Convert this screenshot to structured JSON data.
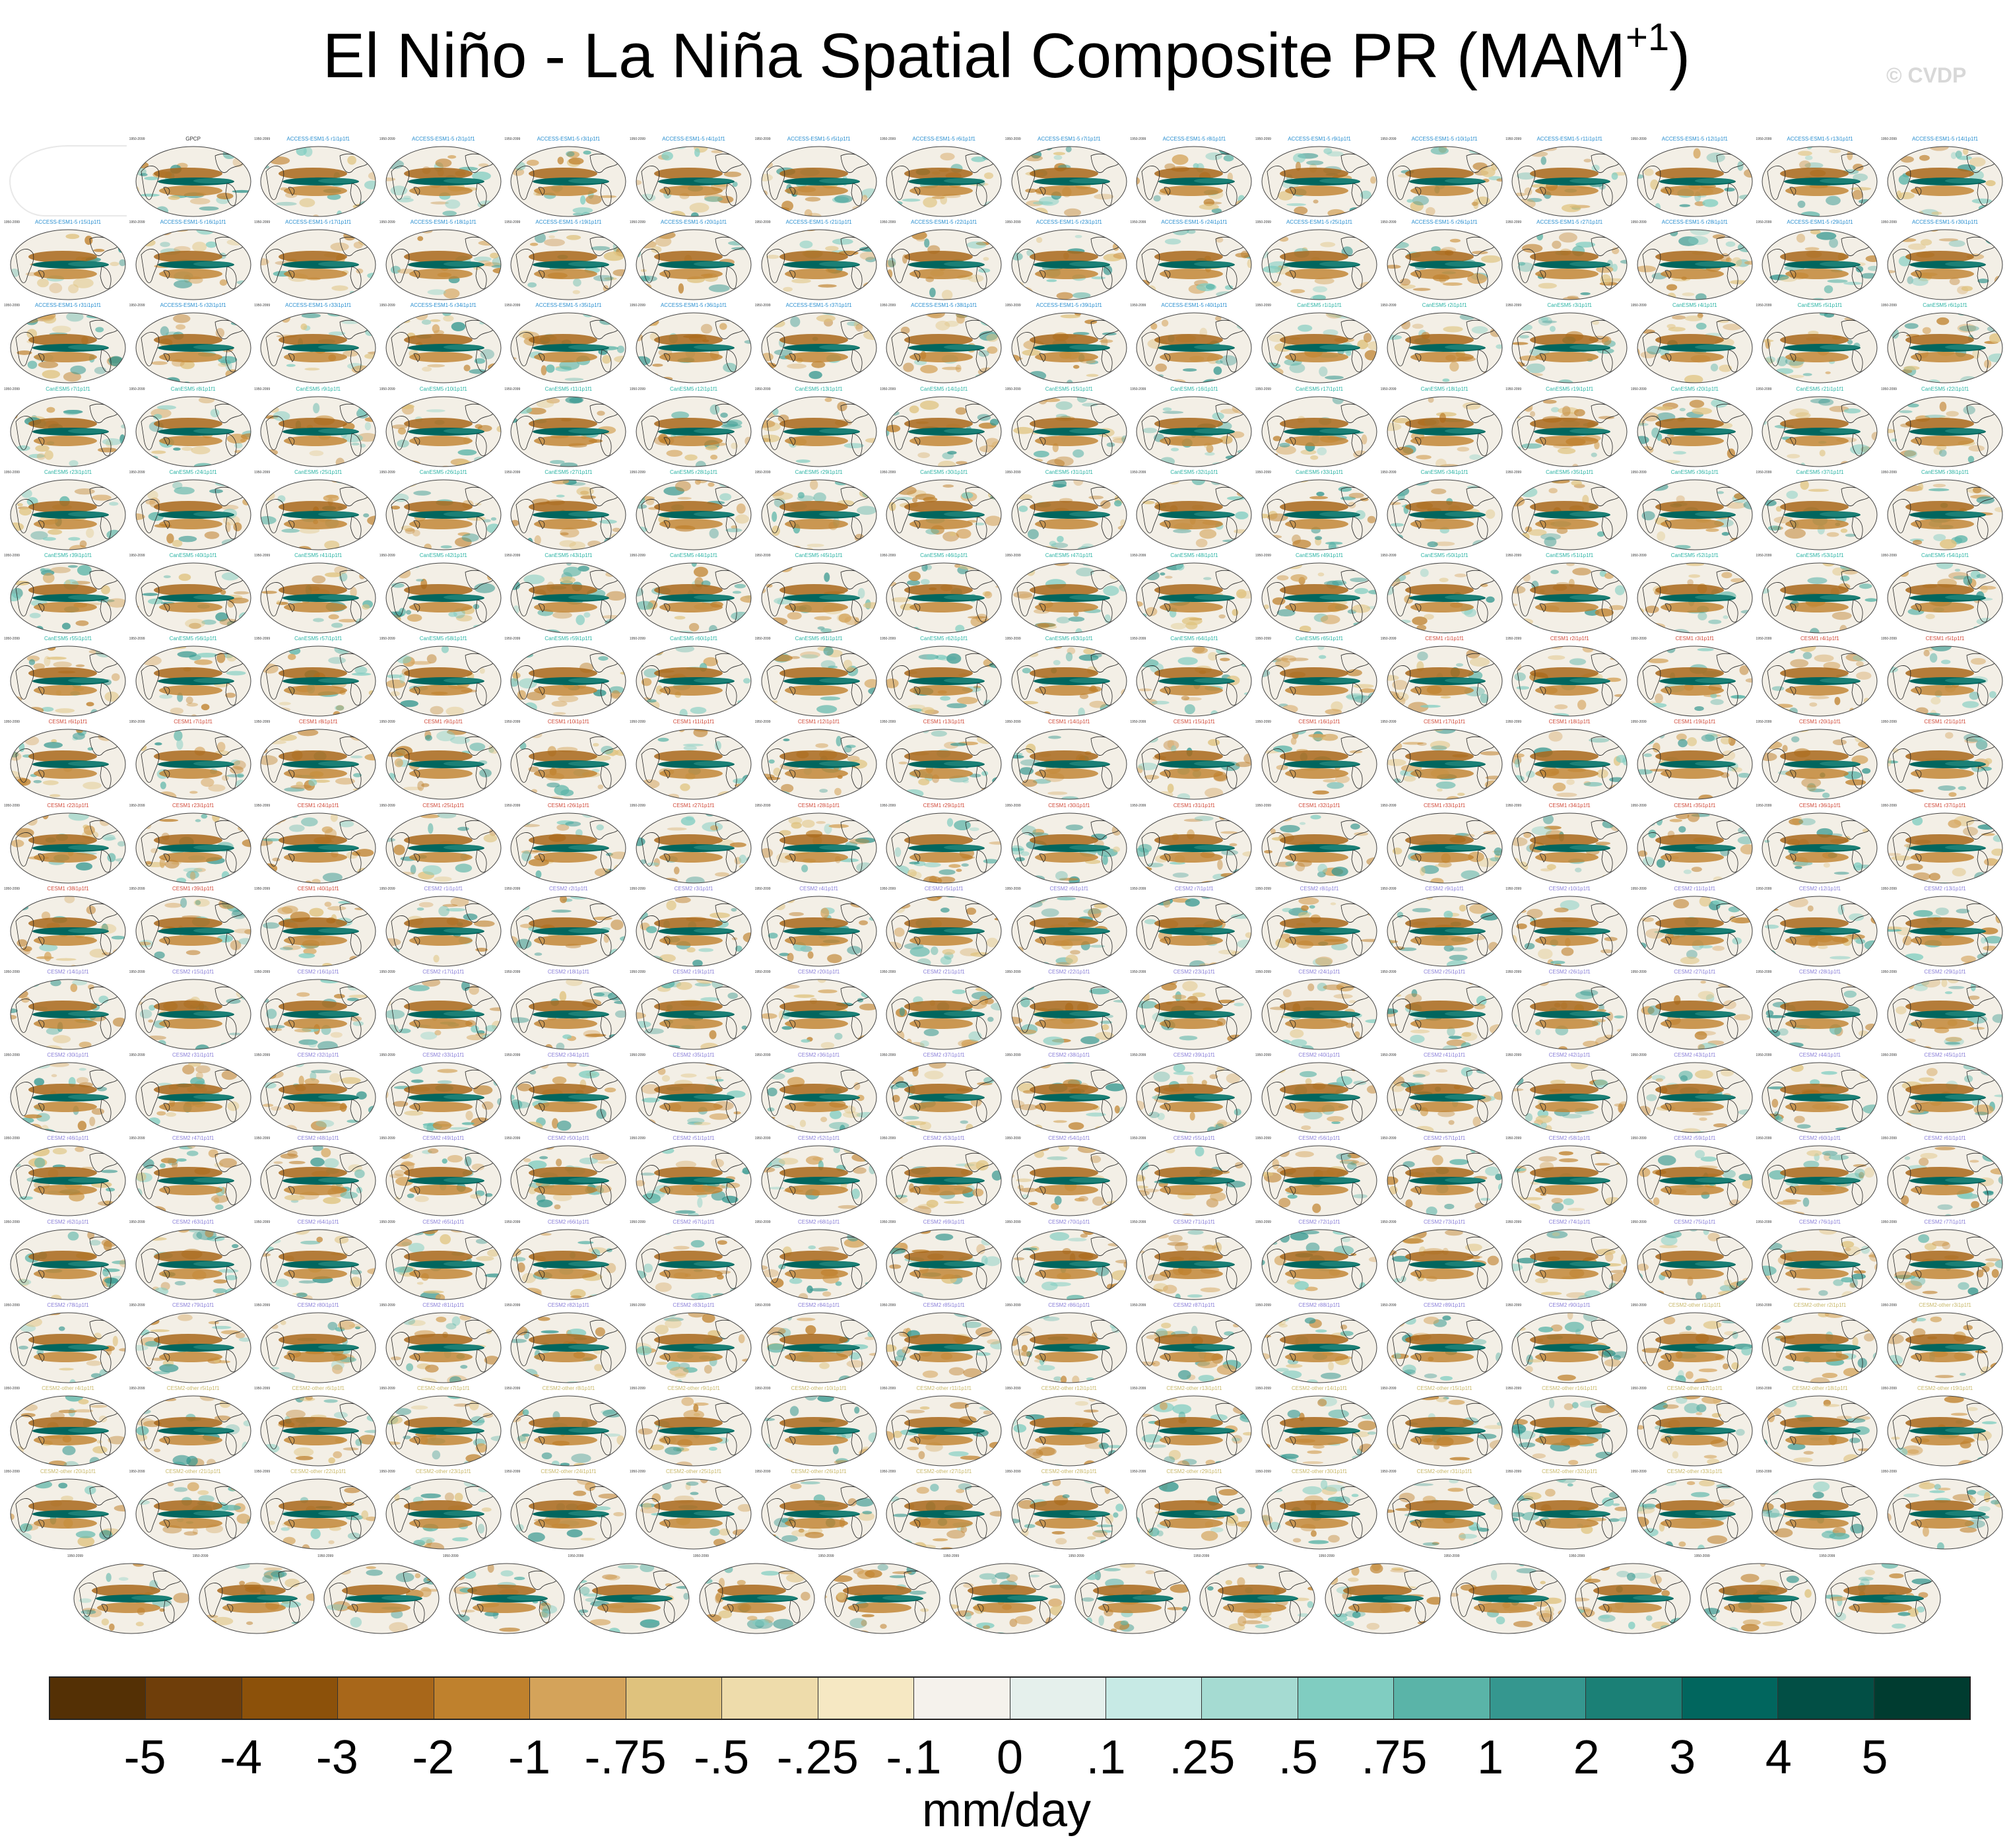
{
  "title": {
    "main": "El Niño - La Niña Spatial Composite PR (MAM",
    "superscript": "+1",
    "close": ")"
  },
  "copyright": "© CVDP",
  "panels": {
    "first_label": "GPCP",
    "groups": [
      {
        "name": "ACCESS-ESM1-5",
        "count": 40,
        "label_color": "#2a8fd0"
      },
      {
        "name": "CanESM5",
        "count": 65,
        "label_color": "#2bb3a4"
      },
      {
        "name": "CESM1",
        "count": 40,
        "label_color": "#d04a3a"
      },
      {
        "name": "CESM2",
        "count": 90,
        "label_color": "#8a7fd8"
      },
      {
        "name": "CESM2-other",
        "count": 33,
        "label_color": "#c8b86a"
      }
    ],
    "years": "1950-2099"
  },
  "colorbar": {
    "colors": [
      "#543005",
      "#6f3e0a",
      "#8c510a",
      "#a8671a",
      "#bf812d",
      "#d4a35a",
      "#dfc27d",
      "#eedcab",
      "#f6e8c3",
      "#f5f2ec",
      "#e5f0ec",
      "#c7eae5",
      "#a5dbd2",
      "#80cdc1",
      "#5ab4a8",
      "#35978f",
      "#1b8076",
      "#01665e",
      "#024f45",
      "#003c30"
    ],
    "labels": [
      "-5",
      "-4",
      "-3",
      "-2",
      "-1",
      "-.75",
      "-.5",
      "-.25",
      "-.1",
      "0",
      ".1",
      ".25",
      ".5",
      ".75",
      "1",
      "2",
      "3",
      "4",
      "5"
    ]
  },
  "units": "mm/day"
}
